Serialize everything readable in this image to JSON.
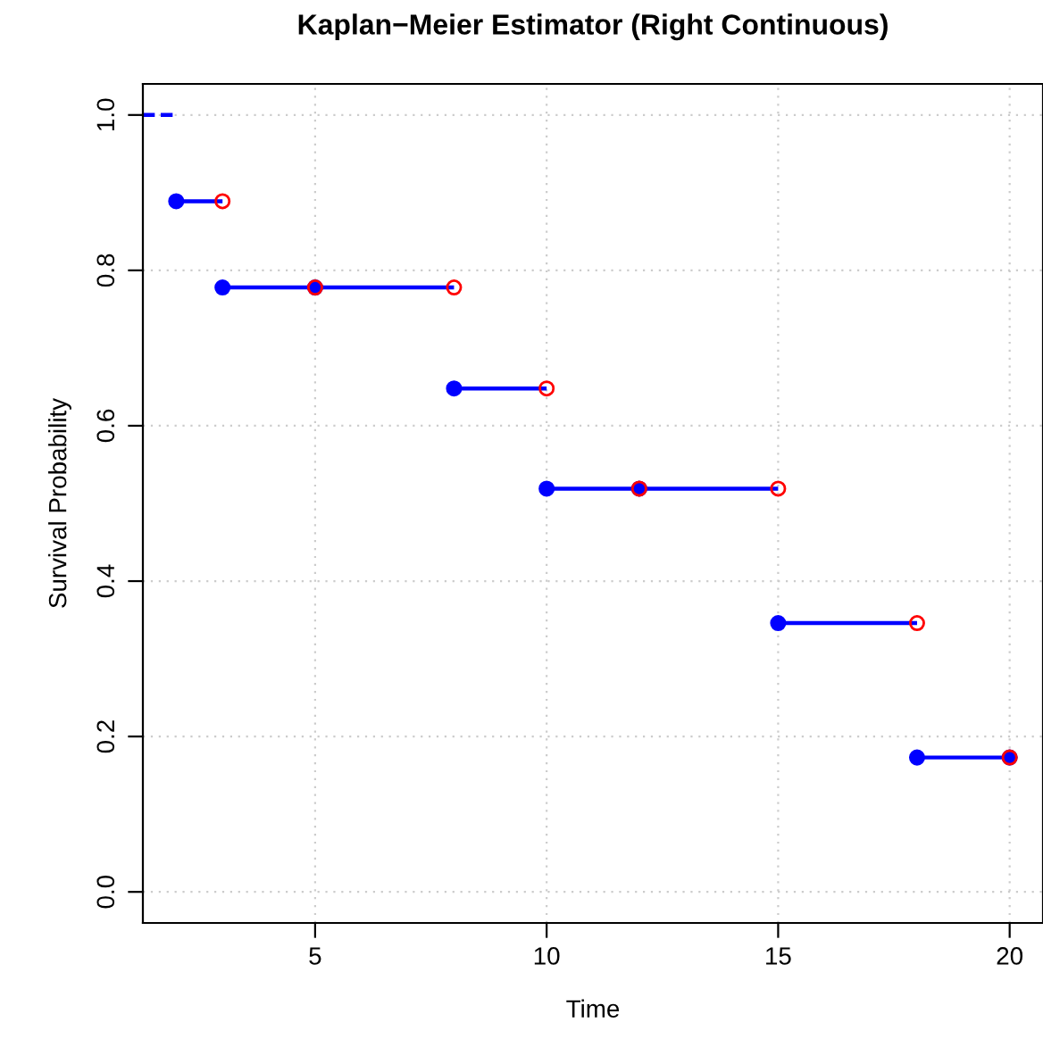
{
  "chart_data": {
    "type": "line",
    "title": "Kaplan−Meier Estimator (Right Continuous)",
    "xlabel": "Time",
    "ylabel": "Survival Probability",
    "xlim": [
      1.28,
      20.72
    ],
    "xticks": [
      5,
      10,
      15,
      20
    ],
    "ylim": [
      -0.04,
      1.04
    ],
    "yticks": [
      {
        "value": 0,
        "label": "0.0"
      },
      {
        "value": 0.2,
        "label": "0.2"
      },
      {
        "value": 0.4,
        "label": "0.4"
      },
      {
        "value": 0.6,
        "label": "0.6"
      },
      {
        "value": 0.8,
        "label": "0.8"
      },
      {
        "value": 1,
        "label": "1.0"
      }
    ],
    "grid": true,
    "series": [
      {
        "color": "#0000ff",
        "line_style": "dashed",
        "marker": "none",
        "x": [
          1.28,
          2
        ],
        "values": [
          1.0,
          1.0
        ]
      },
      {
        "color": "#0000ff",
        "line_style": "solid",
        "marker": "circle",
        "x": [
          2,
          3
        ],
        "values": [
          0.889,
          0.889
        ]
      },
      {
        "color": "#0000ff",
        "line_style": "solid",
        "marker": "circle",
        "x": [
          3,
          8
        ],
        "values": [
          0.778,
          0.778
        ]
      },
      {
        "color": "#0000ff",
        "line_style": "solid",
        "marker": "circle",
        "x": [
          5
        ],
        "values": [
          0.778
        ]
      },
      {
        "color": "#0000ff",
        "line_style": "solid",
        "marker": "circle",
        "x": [
          8,
          10
        ],
        "values": [
          0.648,
          0.648
        ]
      },
      {
        "color": "#0000ff",
        "line_style": "solid",
        "marker": "circle",
        "x": [
          10,
          15
        ],
        "values": [
          0.519,
          0.519
        ]
      },
      {
        "color": "#0000ff",
        "line_style": "solid",
        "marker": "circle",
        "x": [
          12
        ],
        "values": [
          0.519
        ]
      },
      {
        "color": "#0000ff",
        "line_style": "solid",
        "marker": "circle",
        "x": [
          15,
          18
        ],
        "values": [
          0.346,
          0.346
        ]
      },
      {
        "color": "#0000ff",
        "line_style": "solid",
        "marker": "circle",
        "x": [
          18,
          20
        ],
        "values": [
          0.173,
          0.173
        ]
      },
      {
        "color": "#0000ff",
        "line_style": "solid",
        "marker": "circle",
        "x": [
          20
        ],
        "values": [
          0.173
        ]
      },
      {
        "type": "scatter",
        "color": "#ff0000",
        "marker": "circle",
        "x": [
          3,
          5,
          8,
          10,
          12,
          15,
          18,
          20
        ],
        "values": [
          0.889,
          0.778,
          0.778,
          0.648,
          0.519,
          0.519,
          0.346,
          0.173
        ]
      }
    ]
  }
}
